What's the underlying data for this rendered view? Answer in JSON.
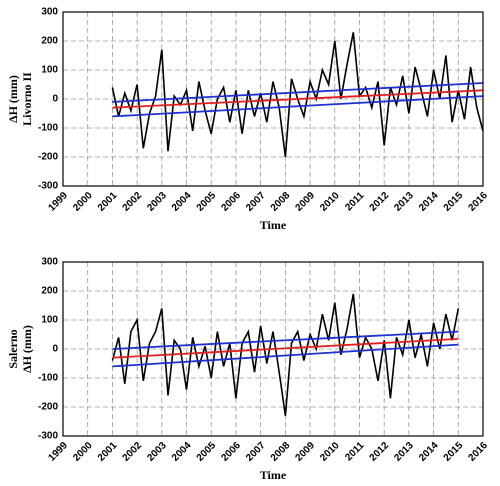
{
  "chart_data": [
    {
      "type": "line",
      "ylabel_lines": [
        "ΔH (mm)",
        "Livorno II"
      ],
      "xlabel": "Time",
      "xlim": [
        1999,
        2016
      ],
      "xticks": [
        1999,
        2000,
        2001,
        2002,
        2003,
        2004,
        2005,
        2006,
        2007,
        2008,
        2009,
        2010,
        2011,
        2012,
        2013,
        2014,
        2015,
        2016
      ],
      "ylim": [
        -300,
        300
      ],
      "yticks": [
        -300,
        -200,
        -100,
        0,
        100,
        200,
        300
      ],
      "grid": true,
      "series": [
        {
          "color": "#000000",
          "x": [
            2001,
            2001.25,
            2001.5,
            2001.75,
            2002,
            2002.25,
            2002.5,
            2002.75,
            2003,
            2003.25,
            2003.5,
            2003.75,
            2004,
            2004.25,
            2004.5,
            2004.75,
            2005,
            2005.25,
            2005.5,
            2005.75,
            2006,
            2006.25,
            2006.5,
            2006.75,
            2007,
            2007.25,
            2007.5,
            2007.75,
            2008,
            2008.25,
            2008.5,
            2008.75,
            2009,
            2009.25,
            2009.5,
            2009.75,
            2010,
            2010.25,
            2010.5,
            2010.75,
            2011,
            2011.25,
            2011.5,
            2011.75,
            2012,
            2012.25,
            2012.5,
            2012.75,
            2013,
            2013.25,
            2013.5,
            2013.75,
            2014,
            2014.25,
            2014.5,
            2014.75,
            2015,
            2015.25,
            2015.5,
            2015.75,
            2016
          ],
          "values": [
            40,
            -60,
            20,
            -40,
            50,
            -170,
            -50,
            10,
            170,
            -180,
            10,
            -20,
            30,
            -110,
            60,
            -40,
            -120,
            0,
            40,
            -80,
            30,
            -120,
            30,
            -60,
            20,
            -80,
            60,
            -30,
            -200,
            70,
            0,
            -60,
            60,
            0,
            100,
            50,
            200,
            0,
            120,
            230,
            10,
            40,
            -30,
            60,
            -160,
            40,
            -20,
            80,
            -50,
            110,
            30,
            -60,
            100,
            0,
            150,
            -80,
            30,
            -70,
            110,
            -30,
            -110
          ]
        },
        {
          "color": "#e02020",
          "x": [
            2001,
            2016
          ],
          "values": [
            -30,
            30
          ]
        },
        {
          "color": "#1f2fd0",
          "x": [
            2001,
            2016
          ],
          "values": [
            -10,
            55
          ]
        },
        {
          "color": "#1f2fd0",
          "x": [
            2001,
            2016
          ],
          "values": [
            -60,
            10
          ]
        }
      ]
    },
    {
      "type": "line",
      "ylabel_lines": [
        "Salerno",
        "ΔH (mm)"
      ],
      "xlabel": "Time",
      "xlim": [
        1999,
        2016
      ],
      "xticks": [
        1999,
        2000,
        2001,
        2002,
        2003,
        2004,
        2005,
        2006,
        2007,
        2008,
        2009,
        2010,
        2011,
        2012,
        2013,
        2014,
        2015,
        2016
      ],
      "ylim": [
        -300,
        300
      ],
      "yticks": [
        -300,
        -200,
        -100,
        0,
        100,
        200,
        300
      ],
      "grid": true,
      "series": [
        {
          "color": "#000000",
          "x": [
            2001,
            2001.25,
            2001.5,
            2001.75,
            2002,
            2002.25,
            2002.5,
            2002.75,
            2003,
            2003.25,
            2003.5,
            2003.75,
            2004,
            2004.25,
            2004.5,
            2004.75,
            2005,
            2005.25,
            2005.5,
            2005.75,
            2006,
            2006.25,
            2006.5,
            2006.75,
            2007,
            2007.25,
            2007.5,
            2007.75,
            2008,
            2008.25,
            2008.5,
            2008.75,
            2009,
            2009.25,
            2009.5,
            2009.75,
            2010,
            2010.25,
            2010.5,
            2010.75,
            2011,
            2011.25,
            2011.5,
            2011.75,
            2012,
            2012.25,
            2012.5,
            2012.75,
            2013,
            2013.25,
            2013.5,
            2013.75,
            2014,
            2014.25,
            2014.5,
            2014.75,
            2015
          ],
          "values": [
            -40,
            40,
            -120,
            60,
            100,
            -110,
            20,
            60,
            140,
            -160,
            30,
            0,
            -140,
            40,
            -60,
            10,
            -100,
            60,
            -60,
            20,
            -170,
            20,
            60,
            -80,
            80,
            -50,
            60,
            -80,
            -230,
            20,
            60,
            -40,
            50,
            0,
            120,
            30,
            160,
            -20,
            70,
            190,
            -30,
            40,
            0,
            -110,
            30,
            -170,
            40,
            -20,
            100,
            -30,
            50,
            -60,
            90,
            0,
            120,
            30,
            140
          ]
        },
        {
          "color": "#e02020",
          "x": [
            2001,
            2015
          ],
          "values": [
            -30,
            35
          ]
        },
        {
          "color": "#1f2fd0",
          "x": [
            2001,
            2015
          ],
          "values": [
            0,
            60
          ]
        },
        {
          "color": "#1f2fd0",
          "x": [
            2001,
            2015
          ],
          "values": [
            -60,
            15
          ]
        }
      ]
    }
  ]
}
